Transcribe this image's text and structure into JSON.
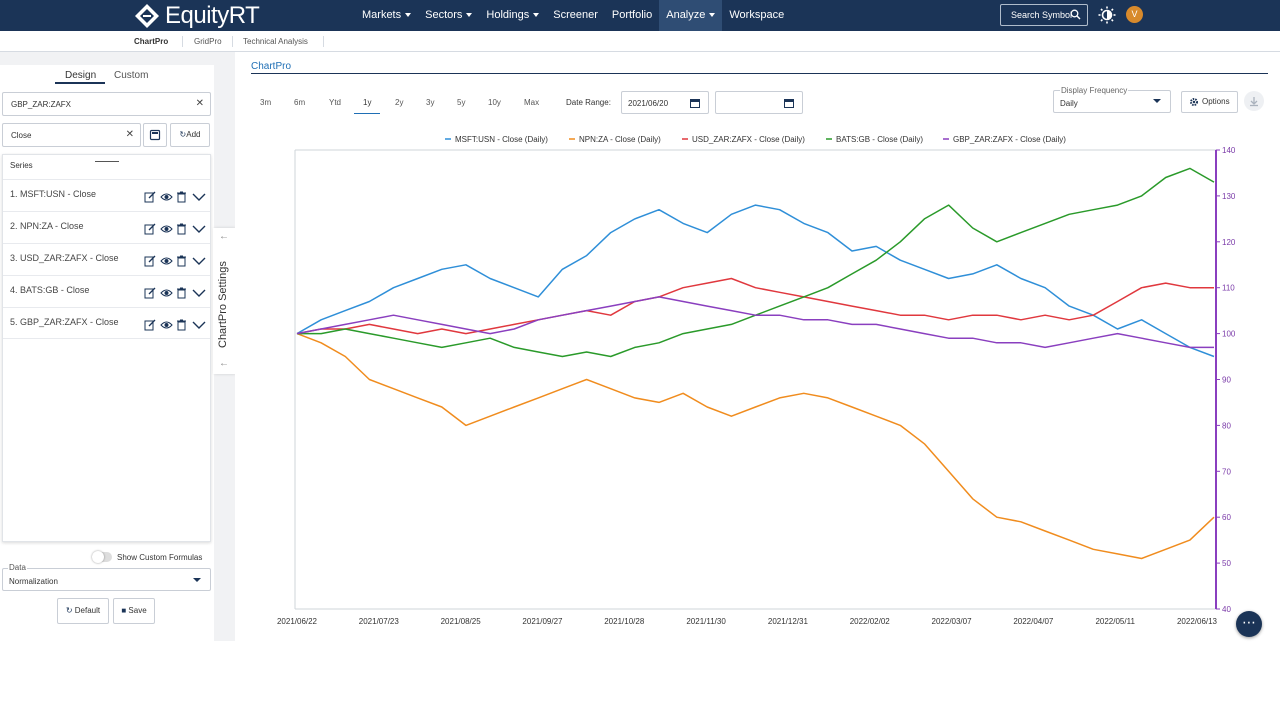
{
  "app": {
    "brand": "EquityRT"
  },
  "nav": {
    "items": [
      "Markets",
      "Sectors",
      "Holdings",
      "Screener",
      "Portfolio",
      "Analyze",
      "Workspace"
    ],
    "search_label": "Search Symbol",
    "avatar_initial": "V"
  },
  "subnav": {
    "tabs": [
      "ChartPro",
      "GridPro",
      "Technical Analysis"
    ]
  },
  "left_panel": {
    "tabs": [
      "Design",
      "Custom"
    ],
    "symbol_value": "GBP_ZAR:ZAFX",
    "field_value": "Close",
    "add_label": "Add",
    "series_header": "Series",
    "series": [
      "1. MSFT:USN - Close",
      "2. NPN:ZA - Close",
      "3. USD_ZAR:ZAFX - Close",
      "4. BATS:GB - Close",
      "5. GBP_ZAR:ZAFX - Close"
    ],
    "custom_formulas_label": "Show Custom Formulas",
    "data_label": "Data",
    "data_value": "Normalization",
    "default_label": "Default",
    "save_label": "Save",
    "settings_tab_label": "ChartPro Settings"
  },
  "chart_panel": {
    "title": "ChartPro",
    "ranges": [
      "3m",
      "6m",
      "Ytd",
      "1y",
      "2y",
      "3y",
      "5y",
      "10y",
      "Max"
    ],
    "active_range": "1y",
    "date_range_label": "Date Range:",
    "date_from": "2021/06/20",
    "date_to": "",
    "frequency_label": "Display Frequency",
    "frequency_value": "Daily",
    "options_label": "Options"
  },
  "chart_data": {
    "type": "line",
    "y_axis": "right",
    "ylim": [
      40,
      140
    ],
    "yticks": [
      40,
      50,
      60,
      70,
      80,
      90,
      100,
      110,
      120,
      130,
      140
    ],
    "legend_position": "top",
    "x_tick_labels": [
      "2021/06/22",
      "2021/07/23",
      "2021/08/25",
      "2021/09/27",
      "2021/10/28",
      "2021/11/30",
      "2021/12/31",
      "2022/02/02",
      "2022/03/07",
      "2022/04/07",
      "2022/05/11",
      "2022/06/13"
    ],
    "series": [
      {
        "name": "MSFT:USN - Close (Daily)",
        "color": "#2f8fd8",
        "values": [
          100,
          103,
          105,
          107,
          110,
          112,
          114,
          115,
          112,
          110,
          108,
          114,
          117,
          122,
          125,
          127,
          124,
          122,
          126,
          128,
          127,
          124,
          122,
          118,
          119,
          116,
          114,
          112,
          113,
          115,
          112,
          110,
          106,
          104,
          101,
          103,
          100,
          97,
          95
        ]
      },
      {
        "name": "NPN:ZA - Close (Daily)",
        "color": "#f08c1e",
        "values": [
          100,
          98,
          95,
          90,
          88,
          86,
          84,
          80,
          82,
          84,
          86,
          88,
          90,
          88,
          86,
          85,
          87,
          84,
          82,
          84,
          86,
          87,
          86,
          84,
          82,
          80,
          76,
          70,
          64,
          60,
          59,
          57,
          55,
          53,
          52,
          51,
          53,
          55,
          60
        ]
      },
      {
        "name": "USD_ZAR:ZAFX - Close (Daily)",
        "color": "#e0383e",
        "values": [
          100,
          101,
          101,
          102,
          101,
          100,
          101,
          100,
          101,
          102,
          103,
          104,
          105,
          104,
          107,
          108,
          110,
          111,
          112,
          110,
          109,
          108,
          107,
          106,
          105,
          104,
          104,
          103,
          104,
          104,
          103,
          104,
          103,
          104,
          107,
          110,
          111,
          110,
          110
        ]
      },
      {
        "name": "BATS:GB - Close (Daily)",
        "color": "#2a9a2a",
        "values": [
          100,
          100,
          101,
          100,
          99,
          98,
          97,
          98,
          99,
          97,
          96,
          95,
          96,
          95,
          97,
          98,
          100,
          101,
          102,
          104,
          106,
          108,
          110,
          113,
          116,
          120,
          125,
          128,
          123,
          120,
          122,
          124,
          126,
          127,
          128,
          130,
          134,
          136,
          133
        ]
      },
      {
        "name": "GBP_ZAR:ZAFX - Close (Daily)",
        "color": "#8a3fbf",
        "values": [
          100,
          101,
          102,
          103,
          104,
          103,
          102,
          101,
          100,
          101,
          103,
          104,
          105,
          106,
          107,
          108,
          107,
          106,
          105,
          104,
          104,
          103,
          103,
          102,
          102,
          101,
          100,
          99,
          99,
          98,
          98,
          97,
          98,
          99,
          100,
          99,
          98,
          97,
          97
        ]
      }
    ]
  }
}
